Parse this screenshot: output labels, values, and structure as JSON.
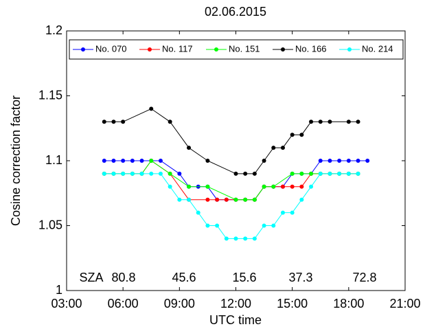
{
  "chart_data": {
    "type": "line",
    "title": "02.06.2015",
    "x_label": "UTC time",
    "y_label": "Cosine correction factor",
    "xlim": [
      3,
      21
    ],
    "ylim": [
      1,
      1.2
    ],
    "xticks": [
      {
        "value": 3,
        "label": "03:00"
      },
      {
        "value": 6,
        "label": "06:00"
      },
      {
        "value": 9,
        "label": "09:00"
      },
      {
        "value": 12,
        "label": "12:00"
      },
      {
        "value": 15,
        "label": "15:00"
      },
      {
        "value": 18,
        "label": "18:00"
      },
      {
        "value": 21,
        "label": "21:00"
      }
    ],
    "yticks": [
      1,
      1.05,
      1.1,
      1.15,
      1.2
    ],
    "legend": "top",
    "annotations": [
      "SZA",
      "80.8",
      "45.6",
      "15.6",
      "37.3",
      "72.8"
    ],
    "series": [
      {
        "name": "No. 070",
        "color": "#0000ff",
        "x": [
          5,
          5.5,
          6,
          6.5,
          7,
          7.5,
          8,
          9,
          9.5,
          10,
          10.5,
          11,
          11.5,
          12,
          12.5,
          13,
          13.5,
          14,
          14.5,
          15,
          15.5,
          16,
          16.5,
          17,
          17.5,
          18,
          18.5,
          19
        ],
        "values": [
          1.1,
          1.1,
          1.1,
          1.1,
          1.1,
          1.1,
          1.1,
          1.09,
          1.08,
          1.08,
          1.08,
          1.07,
          1.07,
          1.07,
          1.07,
          1.07,
          1.08,
          1.08,
          1.08,
          1.09,
          1.09,
          1.09,
          1.1,
          1.1,
          1.1,
          1.1,
          1.1,
          1.1
        ]
      },
      {
        "name": "No. 117",
        "color": "#ff0000",
        "x": [
          5,
          5.5,
          6,
          6.5,
          7,
          7.5,
          8.5,
          9.5,
          10.5,
          11,
          11.5,
          12,
          12.5,
          13,
          13.5,
          14,
          14.5,
          15,
          15.5,
          16,
          16.5,
          17,
          17.5,
          18,
          18.5
        ],
        "values": [
          1.09,
          1.09,
          1.09,
          1.09,
          1.09,
          1.1,
          1.09,
          1.07,
          1.07,
          1.07,
          1.07,
          1.07,
          1.07,
          1.07,
          1.08,
          1.08,
          1.08,
          1.08,
          1.08,
          1.09,
          1.09,
          1.09,
          1.09,
          1.09,
          1.09
        ]
      },
      {
        "name": "No. 151",
        "color": "#00ff00",
        "x": [
          5,
          5.5,
          6,
          6.5,
          7,
          7.5,
          8.5,
          9.5,
          10.5,
          12,
          12.5,
          13,
          13.5,
          14,
          15,
          15.5,
          16,
          16.5,
          17,
          17.5,
          18,
          18.5
        ],
        "values": [
          1.09,
          1.09,
          1.09,
          1.09,
          1.09,
          1.1,
          1.09,
          1.08,
          1.08,
          1.07,
          1.07,
          1.07,
          1.08,
          1.08,
          1.09,
          1.09,
          1.09,
          1.09,
          1.09,
          1.09,
          1.09,
          1.09
        ]
      },
      {
        "name": "No. 166",
        "color": "#000000",
        "x": [
          5,
          5.5,
          6,
          7.5,
          8.5,
          9.5,
          10.5,
          12,
          12.5,
          13,
          13.5,
          14,
          14.5,
          15,
          15.5,
          16,
          16.5,
          17,
          18,
          18.5
        ],
        "values": [
          1.13,
          1.13,
          1.13,
          1.14,
          1.13,
          1.11,
          1.1,
          1.09,
          1.09,
          1.09,
          1.1,
          1.11,
          1.11,
          1.12,
          1.12,
          1.13,
          1.13,
          1.13,
          1.13,
          1.13
        ]
      },
      {
        "name": "No. 214",
        "color": "#00ffff",
        "x": [
          5,
          5.5,
          6,
          6.5,
          7,
          7.5,
          8,
          8.5,
          9,
          9.5,
          10,
          10.5,
          11,
          11.5,
          12,
          12.5,
          13,
          13.5,
          14,
          14.5,
          15,
          15.5,
          16,
          16.5,
          17,
          17.5,
          18,
          18.5
        ],
        "values": [
          1.09,
          1.09,
          1.09,
          1.09,
          1.09,
          1.09,
          1.09,
          1.08,
          1.07,
          1.07,
          1.06,
          1.05,
          1.05,
          1.04,
          1.04,
          1.04,
          1.04,
          1.05,
          1.05,
          1.06,
          1.06,
          1.07,
          1.08,
          1.09,
          1.09,
          1.09,
          1.09,
          1.09
        ]
      }
    ]
  }
}
